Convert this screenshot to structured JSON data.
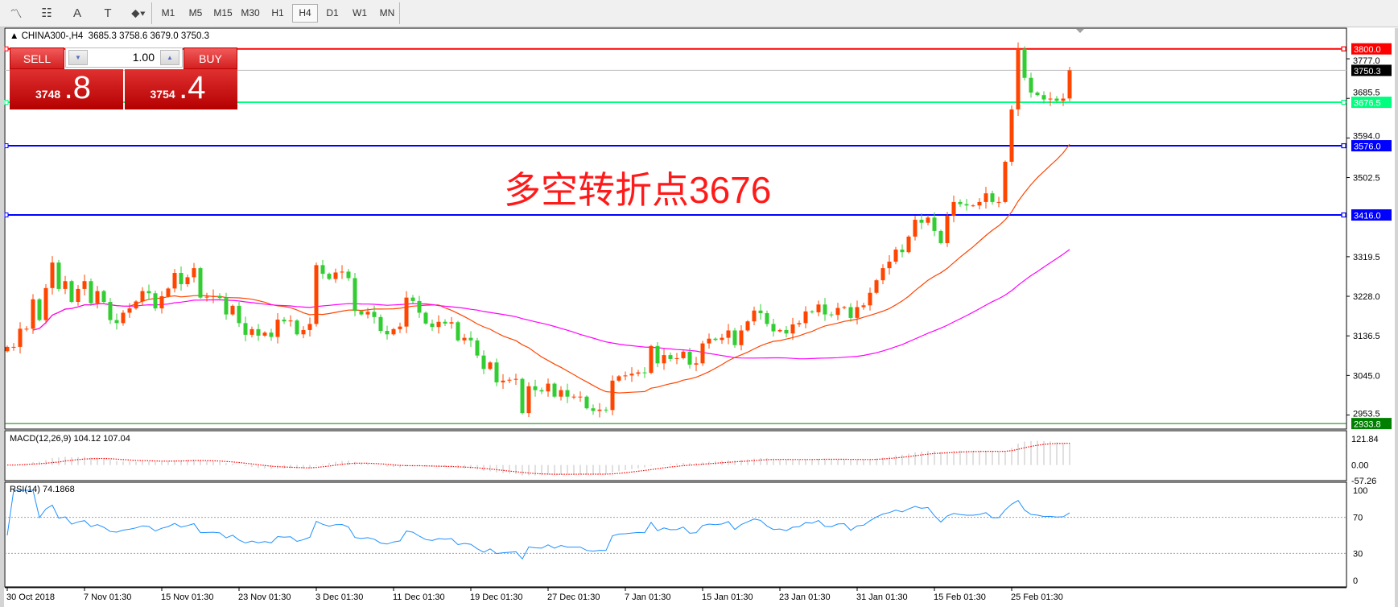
{
  "toolbar": {
    "tools": [
      {
        "name": "indicators-icon",
        "glyph": "〽"
      },
      {
        "name": "periodicity-icon",
        "glyph": "☷"
      },
      {
        "name": "text-icon",
        "glyph": "A"
      },
      {
        "name": "text-label-icon",
        "glyph": "T"
      },
      {
        "name": "arrows-icon",
        "glyph": "⬥▾"
      }
    ],
    "timeframes": [
      "M1",
      "M5",
      "M15",
      "M30",
      "H1",
      "H4",
      "D1",
      "W1",
      "MN"
    ],
    "active_timeframe": "H4"
  },
  "header": {
    "symbol": "CHINA300-,H4",
    "open": "3685.3",
    "high": "3758.6",
    "low": "3679.0",
    "close": "3750.3"
  },
  "trade_panel": {
    "sell_label": "SELL",
    "buy_label": "BUY",
    "lot": "1.00",
    "sell_price_main": "3748",
    "sell_price_frac": ".8",
    "buy_price_main": "3754",
    "buy_price_frac": ".4"
  },
  "annotation": "多空转折点3676",
  "colors": {
    "up": "#ff4500",
    "down": "#32cd32",
    "ma_fast": "#ff4500",
    "ma_slow": "#ff00ff",
    "rsi": "#1e90ff",
    "macd_signal": "#ff0000",
    "macd_hist": "#c0c0c0"
  },
  "chart_data": {
    "type": "candlestick",
    "price_axis": {
      "ticks": [
        "3777.0",
        "3685.5",
        "3594.0",
        "3502.5",
        "3319.5",
        "3228.0",
        "3136.5",
        "3045.0",
        "2953.5"
      ],
      "range": [
        2933.8,
        3800.0
      ]
    },
    "closes": [
      3111,
      3111,
      3153,
      3153,
      3221,
      3173,
      3247,
      3306,
      3245,
      3263,
      3215,
      3245,
      3263,
      3212,
      3240,
      3215,
      3173,
      3166,
      3190,
      3200,
      3216,
      3240,
      3235,
      3200,
      3228,
      3246,
      3282,
      3256,
      3272,
      3293,
      3225,
      3227,
      3229,
      3224,
      3186,
      3206,
      3166,
      3139,
      3152,
      3137,
      3144,
      3134,
      3174,
      3170,
      3172,
      3140,
      3150,
      3164,
      3300,
      3280,
      3268,
      3283,
      3285,
      3270,
      3194,
      3186,
      3192,
      3180,
      3148,
      3140,
      3152,
      3158,
      3225,
      3217,
      3190,
      3165,
      3157,
      3169,
      3165,
      3168,
      3126,
      3132,
      3126,
      3091,
      3060,
      3075,
      3029,
      3033,
      3035,
      3037,
      2958,
      3020,
      3011,
      3008,
      3026,
      2996,
      3011,
      2996,
      2996,
      2996,
      2969,
      2963,
      2966,
      2965,
      3033,
      3043,
      3045,
      3049,
      3052,
      3051,
      3113,
      3073,
      3092,
      3083,
      3085,
      3100,
      3070,
      3073,
      3119,
      3130,
      3127,
      3132,
      3149,
      3115,
      3149,
      3170,
      3195,
      3189,
      3164,
      3147,
      3150,
      3142,
      3163,
      3166,
      3193,
      3191,
      3209,
      3186,
      3185,
      3201,
      3203,
      3178,
      3203,
      3207,
      3236,
      3265,
      3293,
      3308,
      3336,
      3330,
      3366,
      3405,
      3398,
      3410,
      3379,
      3351,
      3414,
      3446,
      3441,
      3438,
      3438,
      3446,
      3466,
      3446,
      3446,
      3539,
      3660,
      3800,
      3733,
      3699,
      3693,
      3683,
      3685,
      3680,
      3685,
      3750.3
    ],
    "moving_averages": [
      {
        "period": 20,
        "color": "#ff4500"
      },
      {
        "period": 60,
        "color": "#ff00ff"
      }
    ],
    "levels": [
      {
        "price": 3800.0,
        "label": "3800.0",
        "color": "#ff0000",
        "text_color": "#ffffff",
        "width": 2
      },
      {
        "price": 3750.3,
        "label": "3750.3",
        "color": "#c0c0c0",
        "bg": "#000000",
        "text_color": "#ffffff",
        "width": 1
      },
      {
        "price": 3676.5,
        "label": "3676.5",
        "color": "#00ff7f",
        "text_color": "#ffffff",
        "width": 2
      },
      {
        "price": 3576.0,
        "label": "3576.0",
        "color": "#0000ff",
        "text_color": "#ffffff",
        "width": 2
      },
      {
        "price": 3416.0,
        "label": "3416.0",
        "color": "#0000ff",
        "text_color": "#ffffff",
        "width": 2
      },
      {
        "price": 2933.8,
        "label": "2933.8",
        "color": "#008000",
        "text_color": "#ffffff",
        "width": 1
      }
    ],
    "date_labels": [
      "30 Oct 2018",
      "7 Nov 01:30",
      "15 Nov 01:30",
      "23 Nov 01:30",
      "3 Dec 01:30",
      "11 Dec 01:30",
      "19 Dec 01:30",
      "27 Dec 01:30",
      "7 Jan 01:30",
      "15 Jan 01:30",
      "23 Jan 01:30",
      "31 Jan 01:30",
      "15 Feb 01:30",
      "25 Feb 01:30"
    ],
    "macd": {
      "title": "MACD(12,26,9) 104.12 107.04",
      "params": [
        12,
        26,
        9
      ],
      "ticks": [
        "121.84",
        "0.00",
        "-57.26"
      ],
      "range": [
        -57.26,
        121.84
      ]
    },
    "rsi": {
      "title": "RSI(14) 74.1868",
      "period": 14,
      "ticks": [
        "100",
        "70",
        "30",
        "0"
      ],
      "levels": [
        70,
        30
      ]
    }
  }
}
